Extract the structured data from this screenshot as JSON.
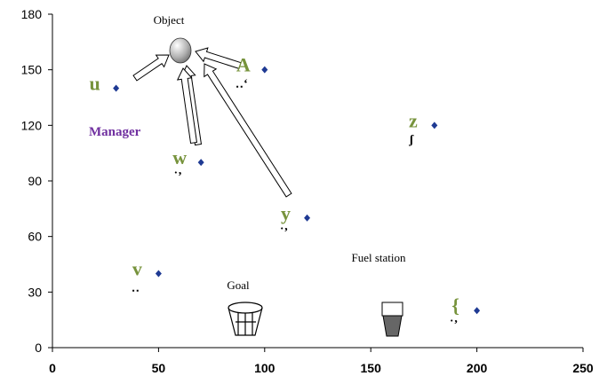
{
  "chart_data": {
    "type": "scatter",
    "xlim": [
      0,
      250
    ],
    "ylim": [
      0,
      180
    ],
    "x_ticks": [
      "0",
      "50",
      "100",
      "150",
      "200",
      "250"
    ],
    "y_ticks": [
      "0",
      "30",
      "60",
      "90",
      "120",
      "150",
      "180"
    ],
    "grid": false,
    "marker_color": "#1f3a93",
    "label_color": "#77933c",
    "points": [
      {
        "x": 30,
        "y": 140,
        "label": "u",
        "sub": ""
      },
      {
        "x": 70,
        "y": 100,
        "label": "w",
        "sub": "˙ʼ"
      },
      {
        "x": 100,
        "y": 150,
        "label": "A",
        "sub": "‥ʻ"
      },
      {
        "x": 120,
        "y": 70,
        "label": "y",
        "sub": "˙ʼ"
      },
      {
        "x": 180,
        "y": 120,
        "label": "z",
        "sub": "ʃ"
      },
      {
        "x": 50,
        "y": 40,
        "label": "v",
        "sub": "‥"
      },
      {
        "x": 200,
        "y": 20,
        "label": "{",
        "sub": "˙ʼ"
      }
    ],
    "annotations": {
      "object": "Object",
      "manager": "Manager",
      "goal": "Goal",
      "fuel_station": "Fuel station"
    },
    "manager_color": "#7030a0"
  }
}
